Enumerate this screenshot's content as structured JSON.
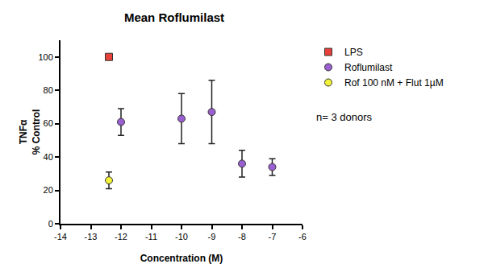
{
  "chart_data": {
    "type": "scatter",
    "title": "Mean Roflumilast",
    "x_label": "Concentration (M)",
    "y_label": "TNFα\n% Control",
    "xlim": [
      -14,
      -6
    ],
    "xticks": [
      -14,
      -13,
      -12,
      -11,
      -10,
      -9,
      -8,
      -7,
      -6
    ],
    "ylim": [
      0,
      110
    ],
    "yticks": [
      0,
      20,
      40,
      60,
      80,
      100
    ],
    "grid": false,
    "legend": "right",
    "annotations": [
      "n= 3 donors"
    ],
    "series": [
      {
        "name": "LPS",
        "color": "#e8403a",
        "marker": "square",
        "x": [
          -12.4
        ],
        "values": [
          100
        ],
        "error": [
          0
        ]
      },
      {
        "name": "Roflumilast",
        "color": "#9a5fd0",
        "marker": "circle",
        "x": [
          -12,
          -10,
          -9,
          -8,
          -7
        ],
        "values": [
          61,
          63,
          67,
          36,
          34
        ],
        "error": [
          8,
          15,
          19,
          8,
          5
        ]
      },
      {
        "name": "Rof 100 nM + Flut 1µM",
        "color": "#f2f23a",
        "marker": "circle",
        "x": [
          -12.4
        ],
        "values": [
          26
        ],
        "error": [
          5
        ]
      }
    ]
  }
}
